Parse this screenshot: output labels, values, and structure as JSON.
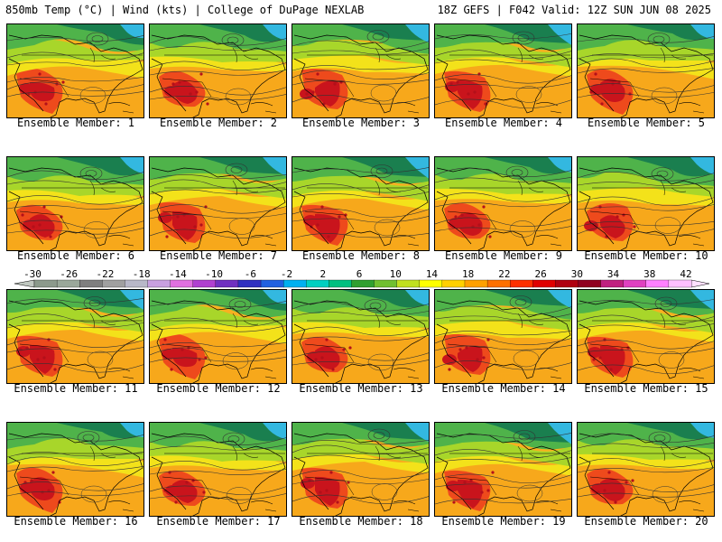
{
  "header": {
    "left": "850mb Temp (°C) | Wind (kts) | College of DuPage NEXLAB",
    "right": "18Z GEFS | F042 Valid: 12Z SUN JUN 08 2025"
  },
  "members": [
    "Ensemble Member: 1",
    "Ensemble Member: 2",
    "Ensemble Member: 3",
    "Ensemble Member: 4",
    "Ensemble Member: 5",
    "Ensemble Member: 6",
    "Ensemble Member: 7",
    "Ensemble Member: 8",
    "Ensemble Member: 9",
    "Ensemble Member: 10",
    "Ensemble Member: 11",
    "Ensemble Member: 12",
    "Ensemble Member: 13",
    "Ensemble Member: 14",
    "Ensemble Member: 15",
    "Ensemble Member: 16",
    "Ensemble Member: 17",
    "Ensemble Member: 18",
    "Ensemble Member: 19",
    "Ensemble Member: 20"
  ],
  "colorbar": {
    "labels": [
      "-30",
      "-26",
      "-22",
      "-18",
      "-14",
      "-10",
      "-6",
      "-2",
      "2",
      "6",
      "10",
      "14",
      "18",
      "22",
      "26",
      "30",
      "34",
      "38",
      "42"
    ],
    "colors": [
      "#8c9a8c",
      "#9aa89a",
      "#7f7f7f",
      "#a0a0a0",
      "#b8b8c8",
      "#c8a0e0",
      "#e070e0",
      "#b040d0",
      "#7030c0",
      "#3030c0",
      "#2060e0",
      "#00b0f0",
      "#00d0c0",
      "#00c080",
      "#30a030",
      "#70c030",
      "#c0e020",
      "#ffff00",
      "#ffd000",
      "#ffa000",
      "#ff7000",
      "#ff3000",
      "#e00000",
      "#b00010",
      "#900020",
      "#c02080",
      "#e040c0",
      "#ff80ff",
      "#ffc0ff"
    ]
  },
  "map_colors": {
    "cold": "#1a7f4f",
    "cool": "#4fb34a",
    "mild": "#a8d62a",
    "warm": "#f3e21a",
    "hot": "#f7a81b",
    "veryhot": "#ee4a1c",
    "extreme": "#c9141c",
    "ocean": "#f8b020",
    "arctic": "#33b8e0"
  }
}
